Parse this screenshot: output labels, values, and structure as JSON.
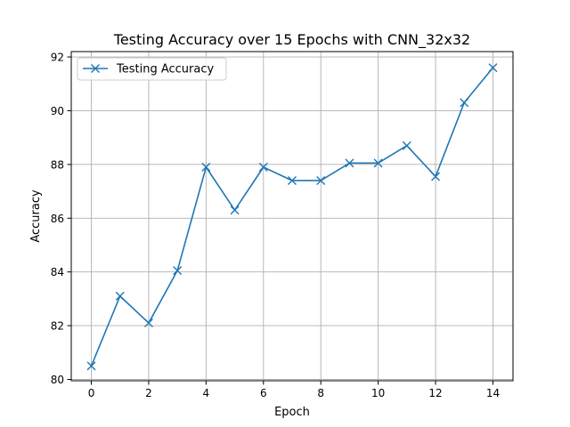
{
  "chart_data": {
    "type": "line",
    "title": "Testing Accuracy over 15 Epochs with CNN_32x32",
    "xlabel": "Epoch",
    "ylabel": "Accuracy",
    "x": [
      0,
      1,
      2,
      3,
      4,
      5,
      6,
      7,
      8,
      9,
      10,
      11,
      12,
      13,
      14
    ],
    "xticks": [
      0,
      2,
      4,
      6,
      8,
      10,
      12,
      14
    ],
    "yticks": [
      80,
      82,
      84,
      86,
      88,
      90,
      92
    ],
    "xlim": [
      -0.7,
      14.7
    ],
    "ylim": [
      79.95,
      92.2
    ],
    "grid": true,
    "legend_position": "upper-left",
    "series": [
      {
        "name": "Testing Accuracy",
        "color": "#1f77b4",
        "marker": "x",
        "values": [
          80.5,
          83.1,
          82.1,
          84.05,
          87.9,
          86.3,
          87.9,
          87.4,
          87.4,
          88.05,
          88.05,
          88.7,
          87.55,
          90.3,
          91.6
        ]
      }
    ]
  }
}
